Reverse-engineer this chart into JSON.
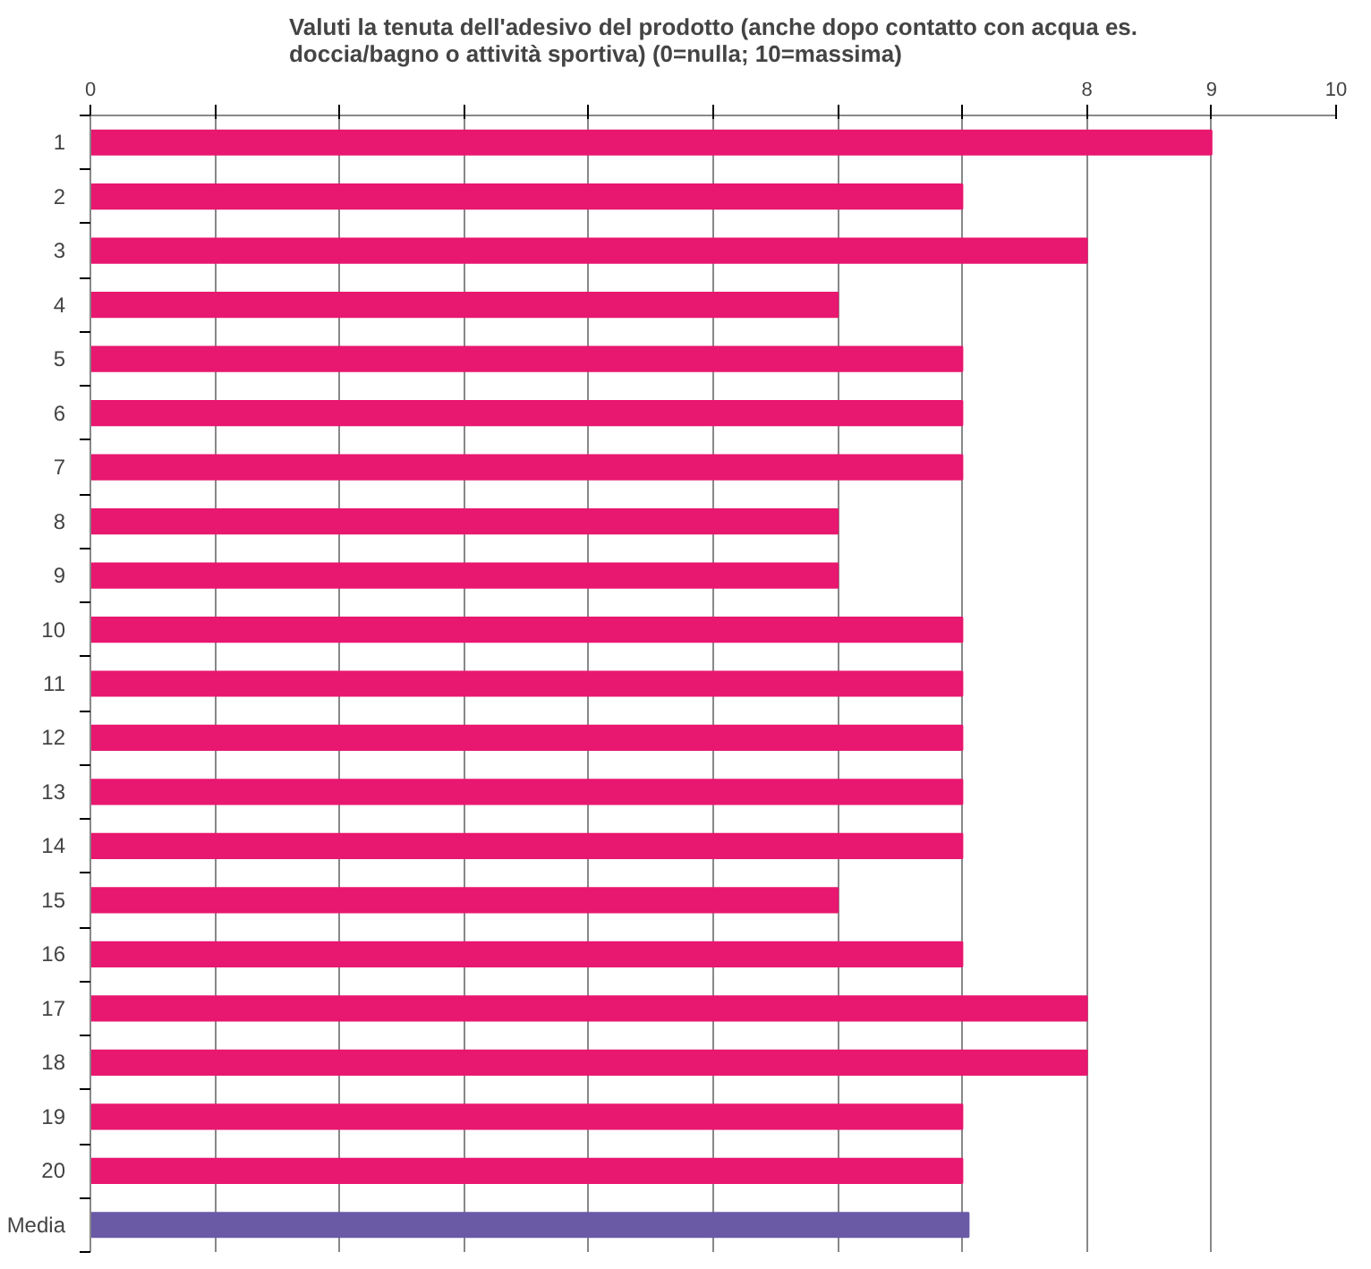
{
  "chart_data": {
    "type": "bar",
    "orientation": "horizontal",
    "title": "Valuti la tenuta dell'adesivo del prodotto (anche dopo contatto con acqua es. doccia/bagno o attività sportiva) (0=nulla; 10=massima)",
    "categories": [
      "1",
      "2",
      "3",
      "4",
      "5",
      "6",
      "7",
      "8",
      "9",
      "10",
      "11",
      "12",
      "13",
      "14",
      "15",
      "16",
      "17",
      "18",
      "19",
      "20",
      "Media"
    ],
    "values": [
      9,
      7,
      8,
      6,
      7,
      7,
      7,
      6,
      6,
      7,
      7,
      7,
      7,
      7,
      6,
      7,
      8,
      8,
      7,
      7,
      7.05
    ],
    "colors": [
      "#e8176f",
      "#e8176f",
      "#e8176f",
      "#e8176f",
      "#e8176f",
      "#e8176f",
      "#e8176f",
      "#e8176f",
      "#e8176f",
      "#e8176f",
      "#e8176f",
      "#e8176f",
      "#e8176f",
      "#e8176f",
      "#e8176f",
      "#e8176f",
      "#e8176f",
      "#e8176f",
      "#e8176f",
      "#e8176f",
      "#6a5aa6"
    ],
    "xlim": [
      0,
      10
    ],
    "xticks": [
      0,
      {
        "value": 1,
        "label": null
      },
      {
        "value": 2,
        "label": null
      },
      {
        "value": 3,
        "label": null
      },
      {
        "value": 4,
        "label": null
      },
      {
        "value": 5,
        "label": null
      },
      {
        "value": 6,
        "label": null
      },
      {
        "value": 7,
        "label": null
      },
      8,
      9,
      10
    ],
    "grid": "x"
  }
}
